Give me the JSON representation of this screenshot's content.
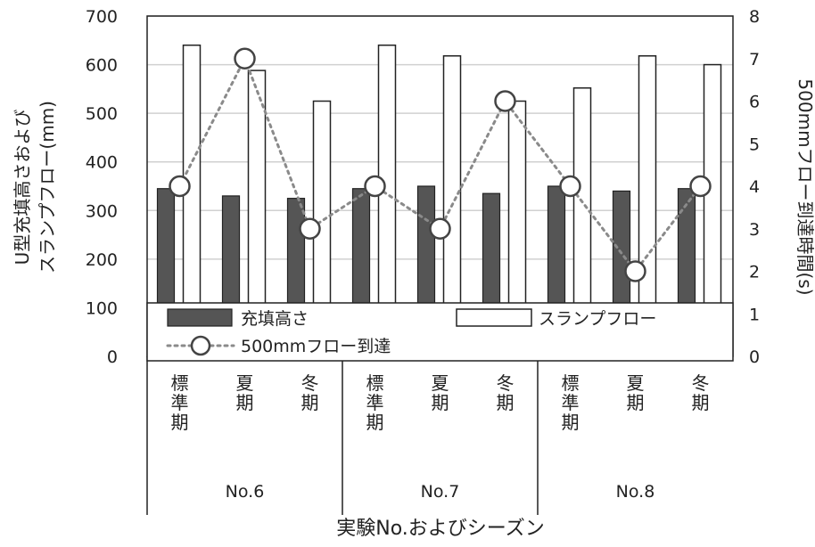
{
  "chart_data": {
    "type": "bar",
    "categories": [
      "標準期",
      "夏期",
      "冬期",
      "標準期",
      "夏期",
      "冬期",
      "標準期",
      "夏期",
      "冬期"
    ],
    "groups": [
      {
        "label": "No.6",
        "span": [
          0,
          2
        ]
      },
      {
        "label": "No.7",
        "span": [
          3,
          5
        ]
      },
      {
        "label": "No.8",
        "span": [
          6,
          8
        ]
      }
    ],
    "series": [
      {
        "name": "充填高さ",
        "kind": "bar",
        "axis": "left",
        "color": "#555555",
        "values": [
          345,
          330,
          325,
          345,
          350,
          335,
          350,
          340,
          345
        ]
      },
      {
        "name": "スランプフロー",
        "kind": "bar",
        "axis": "left",
        "color": "#ffffff",
        "values": [
          640,
          588,
          525,
          640,
          618,
          525,
          552,
          618,
          600
        ]
      },
      {
        "name": "500mmフロー到達",
        "kind": "line",
        "axis": "right",
        "color": "#8a8a8a",
        "values": [
          4,
          7,
          3,
          4,
          3,
          6,
          4,
          2,
          4
        ]
      }
    ],
    "xlabel": "実験No.およびシーズン",
    "ylabel": "U型充填高さおよび\nスランプフロー(mm)",
    "y2label": "500mmフロー到達時間(s)",
    "ylim": [
      0,
      700
    ],
    "y2lim": [
      0,
      8
    ],
    "yticks": [
      "0",
      "100",
      "200",
      "300",
      "400",
      "500",
      "600",
      "700"
    ],
    "y2ticks": [
      "0",
      "1",
      "2",
      "3",
      "4",
      "5",
      "6",
      "7",
      "8"
    ],
    "grid": true,
    "legend": {
      "position": "bottom-inside",
      "labels": [
        "充填高さ",
        "スランプフロー",
        "500mmフロー到達"
      ]
    }
  }
}
